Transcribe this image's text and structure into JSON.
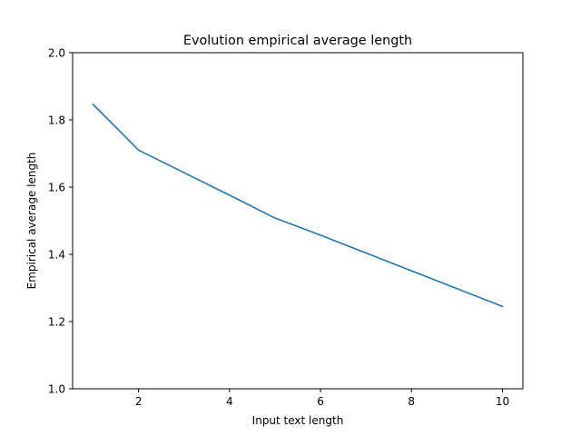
{
  "chart_data": {
    "type": "line",
    "title": "Evolution empirical average length",
    "xlabel": "Input text length",
    "ylabel": "Empirical average length",
    "xlim": [
      0.55,
      10.45
    ],
    "ylim": [
      1.0,
      2.0
    ],
    "xticks": [
      2,
      4,
      6,
      8,
      10
    ],
    "yticks": [
      1.0,
      1.2,
      1.4,
      1.6,
      1.8,
      2.0
    ],
    "xtick_labels": [
      "2",
      "4",
      "6",
      "8",
      "10"
    ],
    "ytick_labels": [
      "1.0",
      "1.2",
      "1.4",
      "1.6",
      "1.8",
      "2.0"
    ],
    "grid": false,
    "series": [
      {
        "color": "#1f77b4",
        "x": [
          1,
          2,
          3,
          4,
          5,
          6,
          7,
          8,
          9,
          10
        ],
        "y": [
          1.846,
          1.71,
          1.643,
          1.576,
          1.508,
          1.457,
          1.404,
          1.351,
          1.298,
          1.245
        ]
      }
    ]
  }
}
